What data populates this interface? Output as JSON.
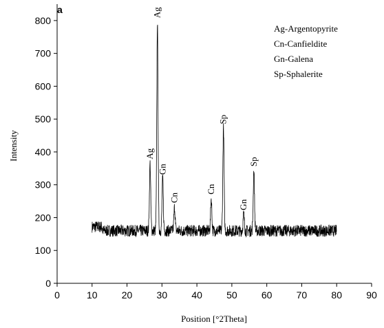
{
  "chart_data": {
    "type": "line",
    "panel_label": "a",
    "xlabel": "Position [°2Theta]",
    "ylabel": "Intensity",
    "xlim": [
      0,
      90
    ],
    "ylim": [
      0,
      850
    ],
    "xticks": [
      0,
      10,
      20,
      30,
      40,
      50,
      60,
      70,
      80,
      90
    ],
    "yticks": [
      0,
      100,
      200,
      300,
      400,
      500,
      600,
      700,
      800
    ],
    "grid": false,
    "legend_position": "top-right",
    "legend": [
      "Ag-Argentopyrite",
      "Cn-Canfieldite",
      "Gn-Galena",
      "Sp-Sphalerite"
    ],
    "x_range": [
      10,
      80
    ],
    "baseline": 160,
    "noise_amplitude": 18,
    "peaks": [
      {
        "x": 26.6,
        "y": 365,
        "label": "Ag"
      },
      {
        "x": 28.7,
        "y": 795,
        "label": "Ag"
      },
      {
        "x": 30.2,
        "y": 318,
        "label": "Gn"
      },
      {
        "x": 33.6,
        "y": 232,
        "label": "Cn"
      },
      {
        "x": 44.1,
        "y": 258,
        "label": "Cn"
      },
      {
        "x": 47.6,
        "y": 472,
        "label": "Sp"
      },
      {
        "x": 53.4,
        "y": 210,
        "label": "Gn"
      },
      {
        "x": 56.3,
        "y": 343,
        "label": "Sp"
      }
    ]
  }
}
